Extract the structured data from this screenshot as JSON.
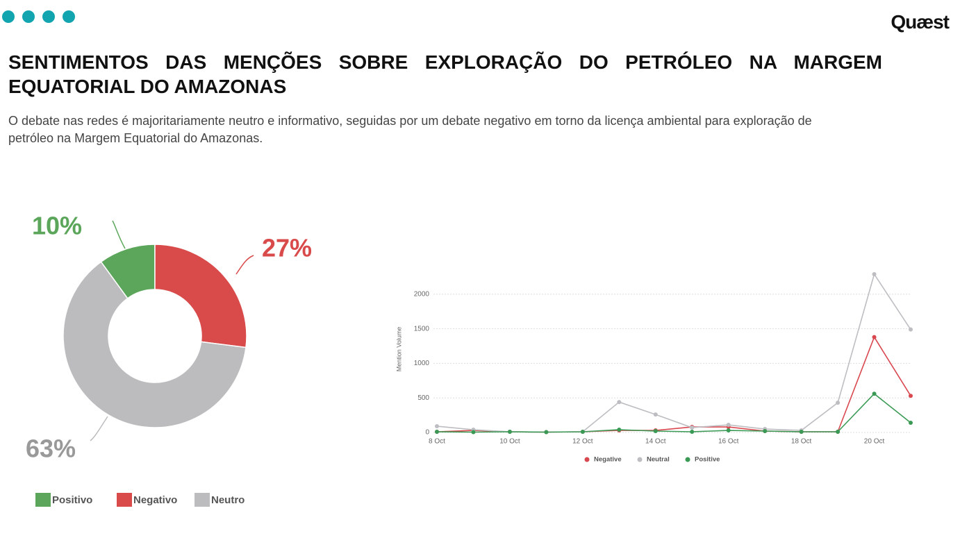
{
  "header": {
    "title": "SENTIMENTOS DAS MENÇÕES SOBRE EXPLORAÇÃO DO PETRÓLEO NA MARGEM EQUATORIAL DO AMAZONAS",
    "subtitle": "O debate nas redes é majoritariamente neutro e informativo, seguidas por um debate negativo em torno da licença ambiental para exploração de petróleo na Margem Equatorial do Amazonas.",
    "logo": "Quæst"
  },
  "chart_data": [
    {
      "type": "donut",
      "categories": [
        "Positivo",
        "Negativo",
        "Neutro"
      ],
      "values": [
        10,
        27,
        63
      ],
      "value_labels": [
        "10%",
        "27%",
        "63%"
      ],
      "colors": [
        "#5ba65b",
        "#d94a4a",
        "#bcbcbf"
      ]
    },
    {
      "type": "line",
      "categories": [
        "8 Oct",
        null,
        "10 Oct",
        null,
        "12 Oct",
        null,
        "14 Oct",
        null,
        "16 Oct",
        null,
        "18 Oct",
        null,
        "20 Oct",
        null
      ],
      "y_label": "Mention Volume",
      "series": [
        {
          "name": "Negative",
          "color": "#d9474f",
          "values": [
            10,
            30,
            10,
            5,
            10,
            30,
            30,
            80,
            80,
            20,
            10,
            10,
            1380,
            530
          ]
        },
        {
          "name": "Neutral",
          "color": "#bdbdc2",
          "values": [
            90,
            40,
            10,
            5,
            10,
            440,
            260,
            70,
            110,
            50,
            30,
            430,
            2290,
            1490
          ]
        },
        {
          "name": "Positive",
          "color": "#3a9a55",
          "values": [
            10,
            5,
            10,
            5,
            10,
            40,
            20,
            10,
            30,
            20,
            10,
            10,
            560,
            140
          ]
        }
      ],
      "ylim": [
        0,
        2300
      ],
      "yticks": [
        0,
        500,
        1000,
        1500,
        2000
      ],
      "grid": true
    }
  ]
}
